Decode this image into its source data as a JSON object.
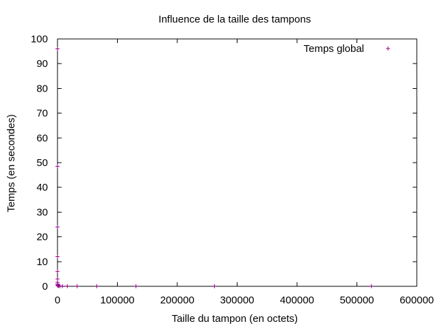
{
  "chart_data": {
    "type": "scatter",
    "title": "Influence de la taille des tampons",
    "xlabel": "Taille du tampon (en octets)",
    "ylabel": "Temps (en secondes)",
    "xlim": [
      0,
      600000
    ],
    "ylim": [
      0,
      100
    ],
    "x_ticks": [
      0,
      100000,
      200000,
      300000,
      400000,
      500000,
      600000
    ],
    "x_tick_labels": [
      "0",
      "100000",
      "200000",
      "300000",
      "400000",
      "500000",
      "600000"
    ],
    "y_ticks": [
      0,
      10,
      20,
      30,
      40,
      50,
      60,
      70,
      80,
      90,
      100
    ],
    "y_tick_labels": [
      "0",
      "10",
      "20",
      "30",
      "40",
      "50",
      "60",
      "70",
      "80",
      "90",
      "100"
    ],
    "grid": false,
    "legend_position": "top-right",
    "series": [
      {
        "name": "Temps global",
        "color": "#94008b",
        "marker": "plus",
        "points": [
          [
            1,
            96
          ],
          [
            2,
            48.5
          ],
          [
            4,
            24
          ],
          [
            8,
            12
          ],
          [
            16,
            6
          ],
          [
            32,
            3
          ],
          [
            64,
            1.6
          ],
          [
            128,
            0.9
          ],
          [
            256,
            0.5
          ],
          [
            512,
            0.3
          ],
          [
            1024,
            0.2
          ],
          [
            2048,
            0.15
          ],
          [
            4096,
            0.1
          ],
          [
            8192,
            0.08
          ],
          [
            16384,
            0.06
          ],
          [
            32768,
            0.05
          ],
          [
            65536,
            0.05
          ],
          [
            131072,
            0.05
          ],
          [
            262144,
            0.05
          ],
          [
            524288,
            0.05
          ]
        ]
      }
    ]
  }
}
